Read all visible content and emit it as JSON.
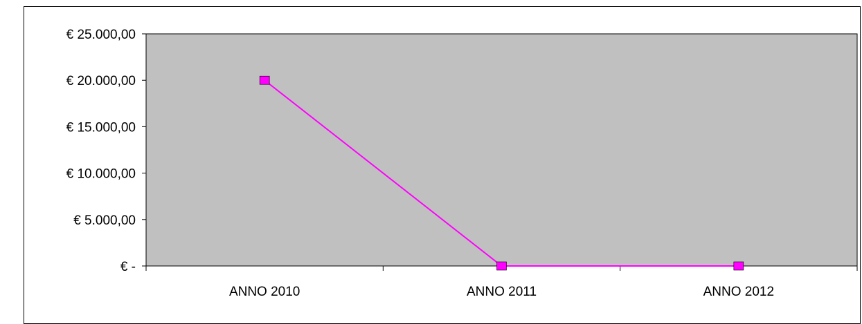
{
  "chart_data": {
    "type": "line",
    "categories": [
      "ANNO 2010",
      "ANNO 2011",
      "ANNO 2012"
    ],
    "series": [
      {
        "values": [
          20000,
          0,
          0
        ]
      }
    ],
    "y_tick_values": [
      0,
      5000,
      10000,
      15000,
      20000,
      25000
    ],
    "y_tick_labels": [
      "€ -",
      "€ 5.000,00",
      "€ 10.000,00",
      "€ 15.000,00",
      "€ 20.000,00",
      "€ 25.000,00"
    ],
    "ylim": [
      0,
      25000
    ],
    "grid": false,
    "legend": "none",
    "colors": {
      "plot_background": "#c0c0c0",
      "series_line": "#ff00ff",
      "axis": "#000000"
    }
  }
}
